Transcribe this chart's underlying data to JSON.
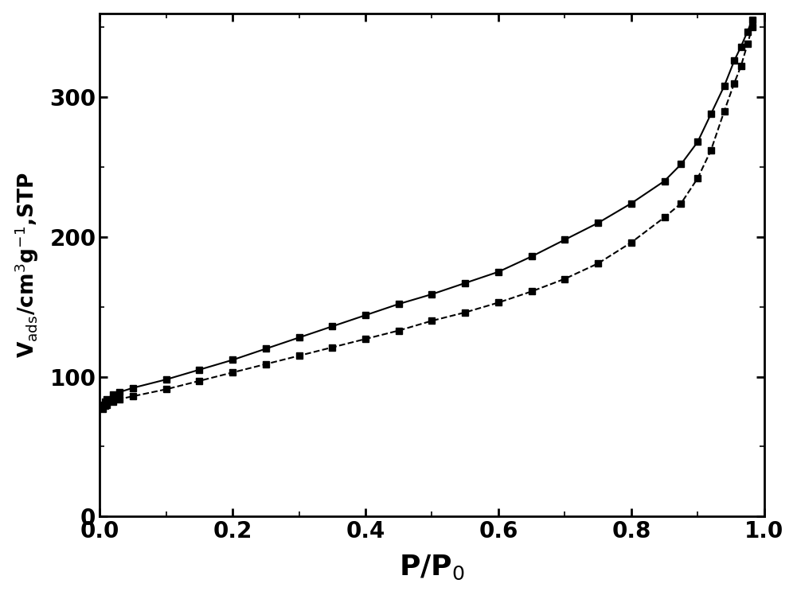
{
  "adsorption_x": [
    0.004,
    0.008,
    0.01,
    0.02,
    0.03,
    0.05,
    0.1,
    0.15,
    0.2,
    0.25,
    0.3,
    0.35,
    0.4,
    0.45,
    0.5,
    0.55,
    0.6,
    0.65,
    0.7,
    0.75,
    0.8,
    0.85,
    0.875,
    0.9,
    0.92,
    0.94,
    0.955,
    0.965,
    0.975,
    0.982
  ],
  "adsorption_y": [
    77,
    79,
    80,
    82,
    84,
    86,
    91,
    97,
    103,
    109,
    115,
    121,
    127,
    133,
    140,
    146,
    153,
    161,
    170,
    181,
    196,
    214,
    224,
    242,
    262,
    290,
    310,
    322,
    338,
    350
  ],
  "desorption_x": [
    0.982,
    0.975,
    0.965,
    0.955,
    0.94,
    0.92,
    0.9,
    0.875,
    0.85,
    0.8,
    0.75,
    0.7,
    0.65,
    0.6,
    0.55,
    0.5,
    0.45,
    0.4,
    0.35,
    0.3,
    0.25,
    0.2,
    0.15,
    0.1,
    0.05,
    0.03,
    0.02,
    0.01,
    0.008,
    0.004
  ],
  "desorption_y": [
    355,
    347,
    336,
    326,
    308,
    288,
    268,
    252,
    240,
    224,
    210,
    198,
    186,
    175,
    167,
    159,
    152,
    144,
    136,
    128,
    120,
    112,
    105,
    98,
    92,
    89,
    87,
    84,
    82,
    80
  ],
  "xlabel": "P/P$_0$",
  "ylabel": "V$_\\mathrm{ads}$/cm$^3$g$^{-1}$,STP",
  "xlim": [
    0.0,
    1.0
  ],
  "ylim": [
    0,
    360
  ],
  "xticks": [
    0.0,
    0.2,
    0.4,
    0.6,
    0.8,
    1.0
  ],
  "yticks": [
    0,
    100,
    200,
    300
  ],
  "line_color": "#000000",
  "marker": "s",
  "marker_size": 6,
  "line_width": 1.5,
  "adsorption_linestyle": "--",
  "desorption_linestyle": "-",
  "background_color": "#ffffff",
  "xlabel_fontsize": 26,
  "ylabel_fontsize": 19,
  "tick_fontsize": 20,
  "top_spine": true,
  "right_spine": true
}
